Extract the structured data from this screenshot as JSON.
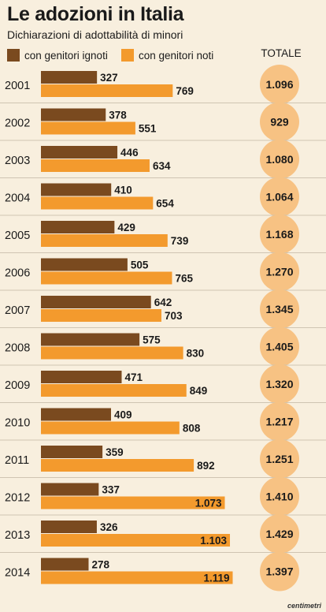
{
  "header": {
    "title": "Le adozioni in Italia",
    "subtitle": "Dichiarazioni di adottabilità di minori"
  },
  "legend": [
    {
      "label": "con genitori ignoti",
      "color": "#7a4a1f"
    },
    {
      "label": "con genitori noti",
      "color": "#f39a2d"
    }
  ],
  "total_header": "TOTALE",
  "credit": "centimetri",
  "colors": {
    "background": "#f8efde",
    "ignoti": "#7a4a1f",
    "noti": "#f39a2d",
    "circle": "#f7c283",
    "divider": "#cfc4b2"
  },
  "chart_data": {
    "type": "bar",
    "orientation": "horizontal",
    "categories": [
      "2001",
      "2002",
      "2003",
      "2004",
      "2005",
      "2006",
      "2007",
      "2008",
      "2009",
      "2010",
      "2011",
      "2012",
      "2013",
      "2014"
    ],
    "series": [
      {
        "name": "con genitori ignoti",
        "values": [
          327,
          378,
          446,
          410,
          429,
          505,
          642,
          575,
          471,
          409,
          359,
          337,
          326,
          278
        ],
        "labels": [
          "327",
          "378",
          "446",
          "410",
          "429",
          "505",
          "642",
          "575",
          "471",
          "409",
          "359",
          "337",
          "326",
          "278"
        ]
      },
      {
        "name": "con genitori noti",
        "values": [
          769,
          551,
          634,
          654,
          739,
          765,
          703,
          830,
          849,
          808,
          892,
          1073,
          1103,
          1119
        ],
        "labels": [
          "769",
          "551",
          "634",
          "654",
          "739",
          "765",
          "703",
          "830",
          "849",
          "808",
          "892",
          "1.073",
          "1.103",
          "1.119"
        ]
      }
    ],
    "totals": [
      "1.096",
      "929",
      "1.080",
      "1.064",
      "1.168",
      "1.270",
      "1.345",
      "1.405",
      "1.320",
      "1.217",
      "1.251",
      "1.410",
      "1.429",
      "1.397"
    ],
    "title": "Le adozioni in Italia",
    "subtitle": "Dichiarazioni di adottabilità di minori",
    "legend_position": "top-left",
    "grid": false
  }
}
